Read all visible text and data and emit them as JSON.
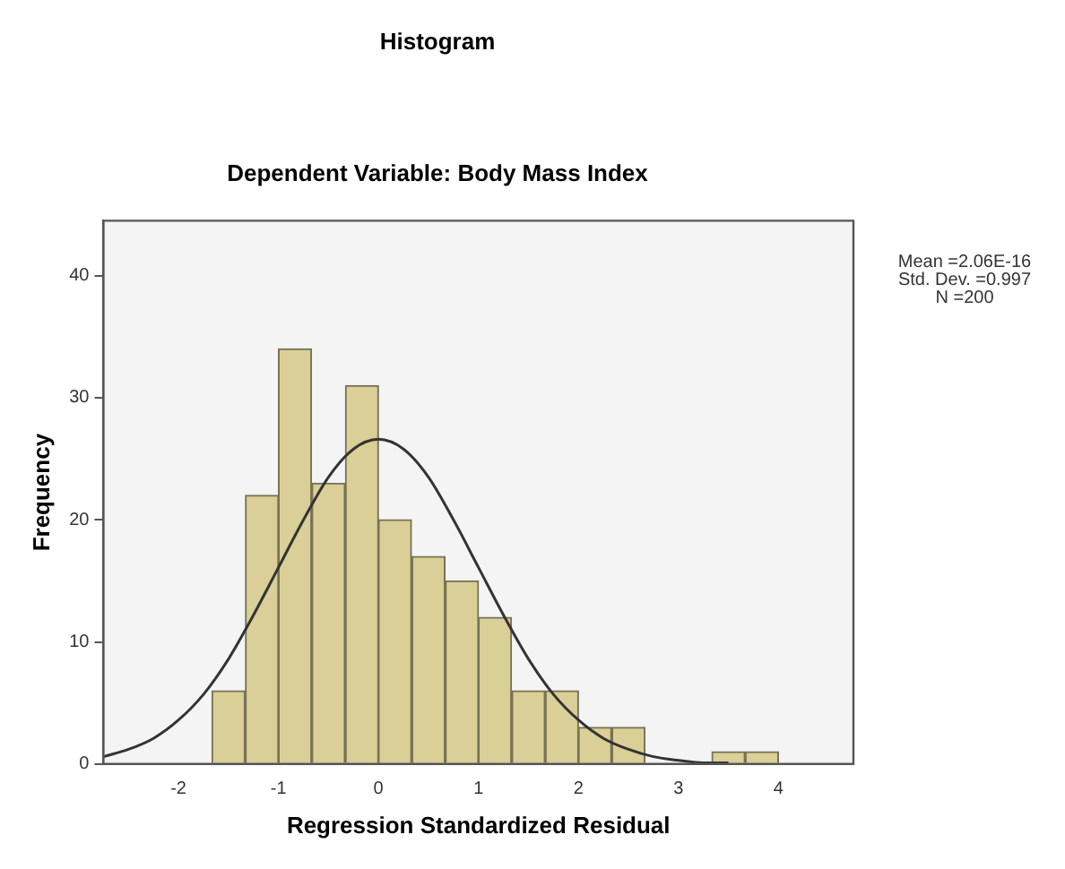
{
  "chart_data": {
    "type": "histogram",
    "title": "Histogram",
    "subtitle": "Dependent Variable: Body Mass Index",
    "xlabel": "Regression Standardized Residual",
    "ylabel": "Frequency",
    "bins": [
      -1.67,
      -1.33,
      -1,
      -0.67,
      -0.33,
      0,
      0.33,
      0.67,
      1,
      1.33,
      1.67,
      2,
      2.33,
      2.67,
      3,
      3.33,
      3.67,
      4
    ],
    "values": [
      6,
      22,
      34,
      23,
      31,
      20,
      17,
      15,
      12,
      6,
      6,
      3,
      3,
      0,
      0,
      1,
      1
    ],
    "color": "#d9cf97",
    "series": [
      {
        "type": "line",
        "color": "#333333",
        "x": [
          -2.75,
          -2.5,
          -2.25,
          -2,
          -1.75,
          -1.5,
          -1.25,
          -1,
          -0.75,
          -0.5,
          -0.25,
          0,
          0.25,
          0.5,
          0.75,
          1,
          1.25,
          1.5,
          1.75,
          2,
          2.25,
          2.5,
          2.75,
          3,
          3.25,
          3.5
        ],
        "values": [
          0.6,
          1.2,
          2.1,
          3.6,
          5.7,
          8.6,
          12.2,
          16.1,
          20,
          23.5,
          25.8,
          26.6,
          25.8,
          23.5,
          20,
          16.1,
          12.2,
          8.6,
          5.7,
          3.6,
          2.1,
          1.2,
          0.6,
          0.3,
          0.1,
          0.1
        ]
      }
    ],
    "xlim": [
      -2.75,
      4.75
    ],
    "xticks": [
      -2,
      -1,
      0,
      1,
      2,
      3,
      4
    ],
    "ylim": [
      0,
      44.5
    ],
    "yticks": [
      0,
      10,
      20,
      30,
      40
    ],
    "grid": false,
    "legend": false,
    "annotations": [
      "Mean =2.06E-16\nStd. Dev. =0.997\nN =200"
    ]
  }
}
